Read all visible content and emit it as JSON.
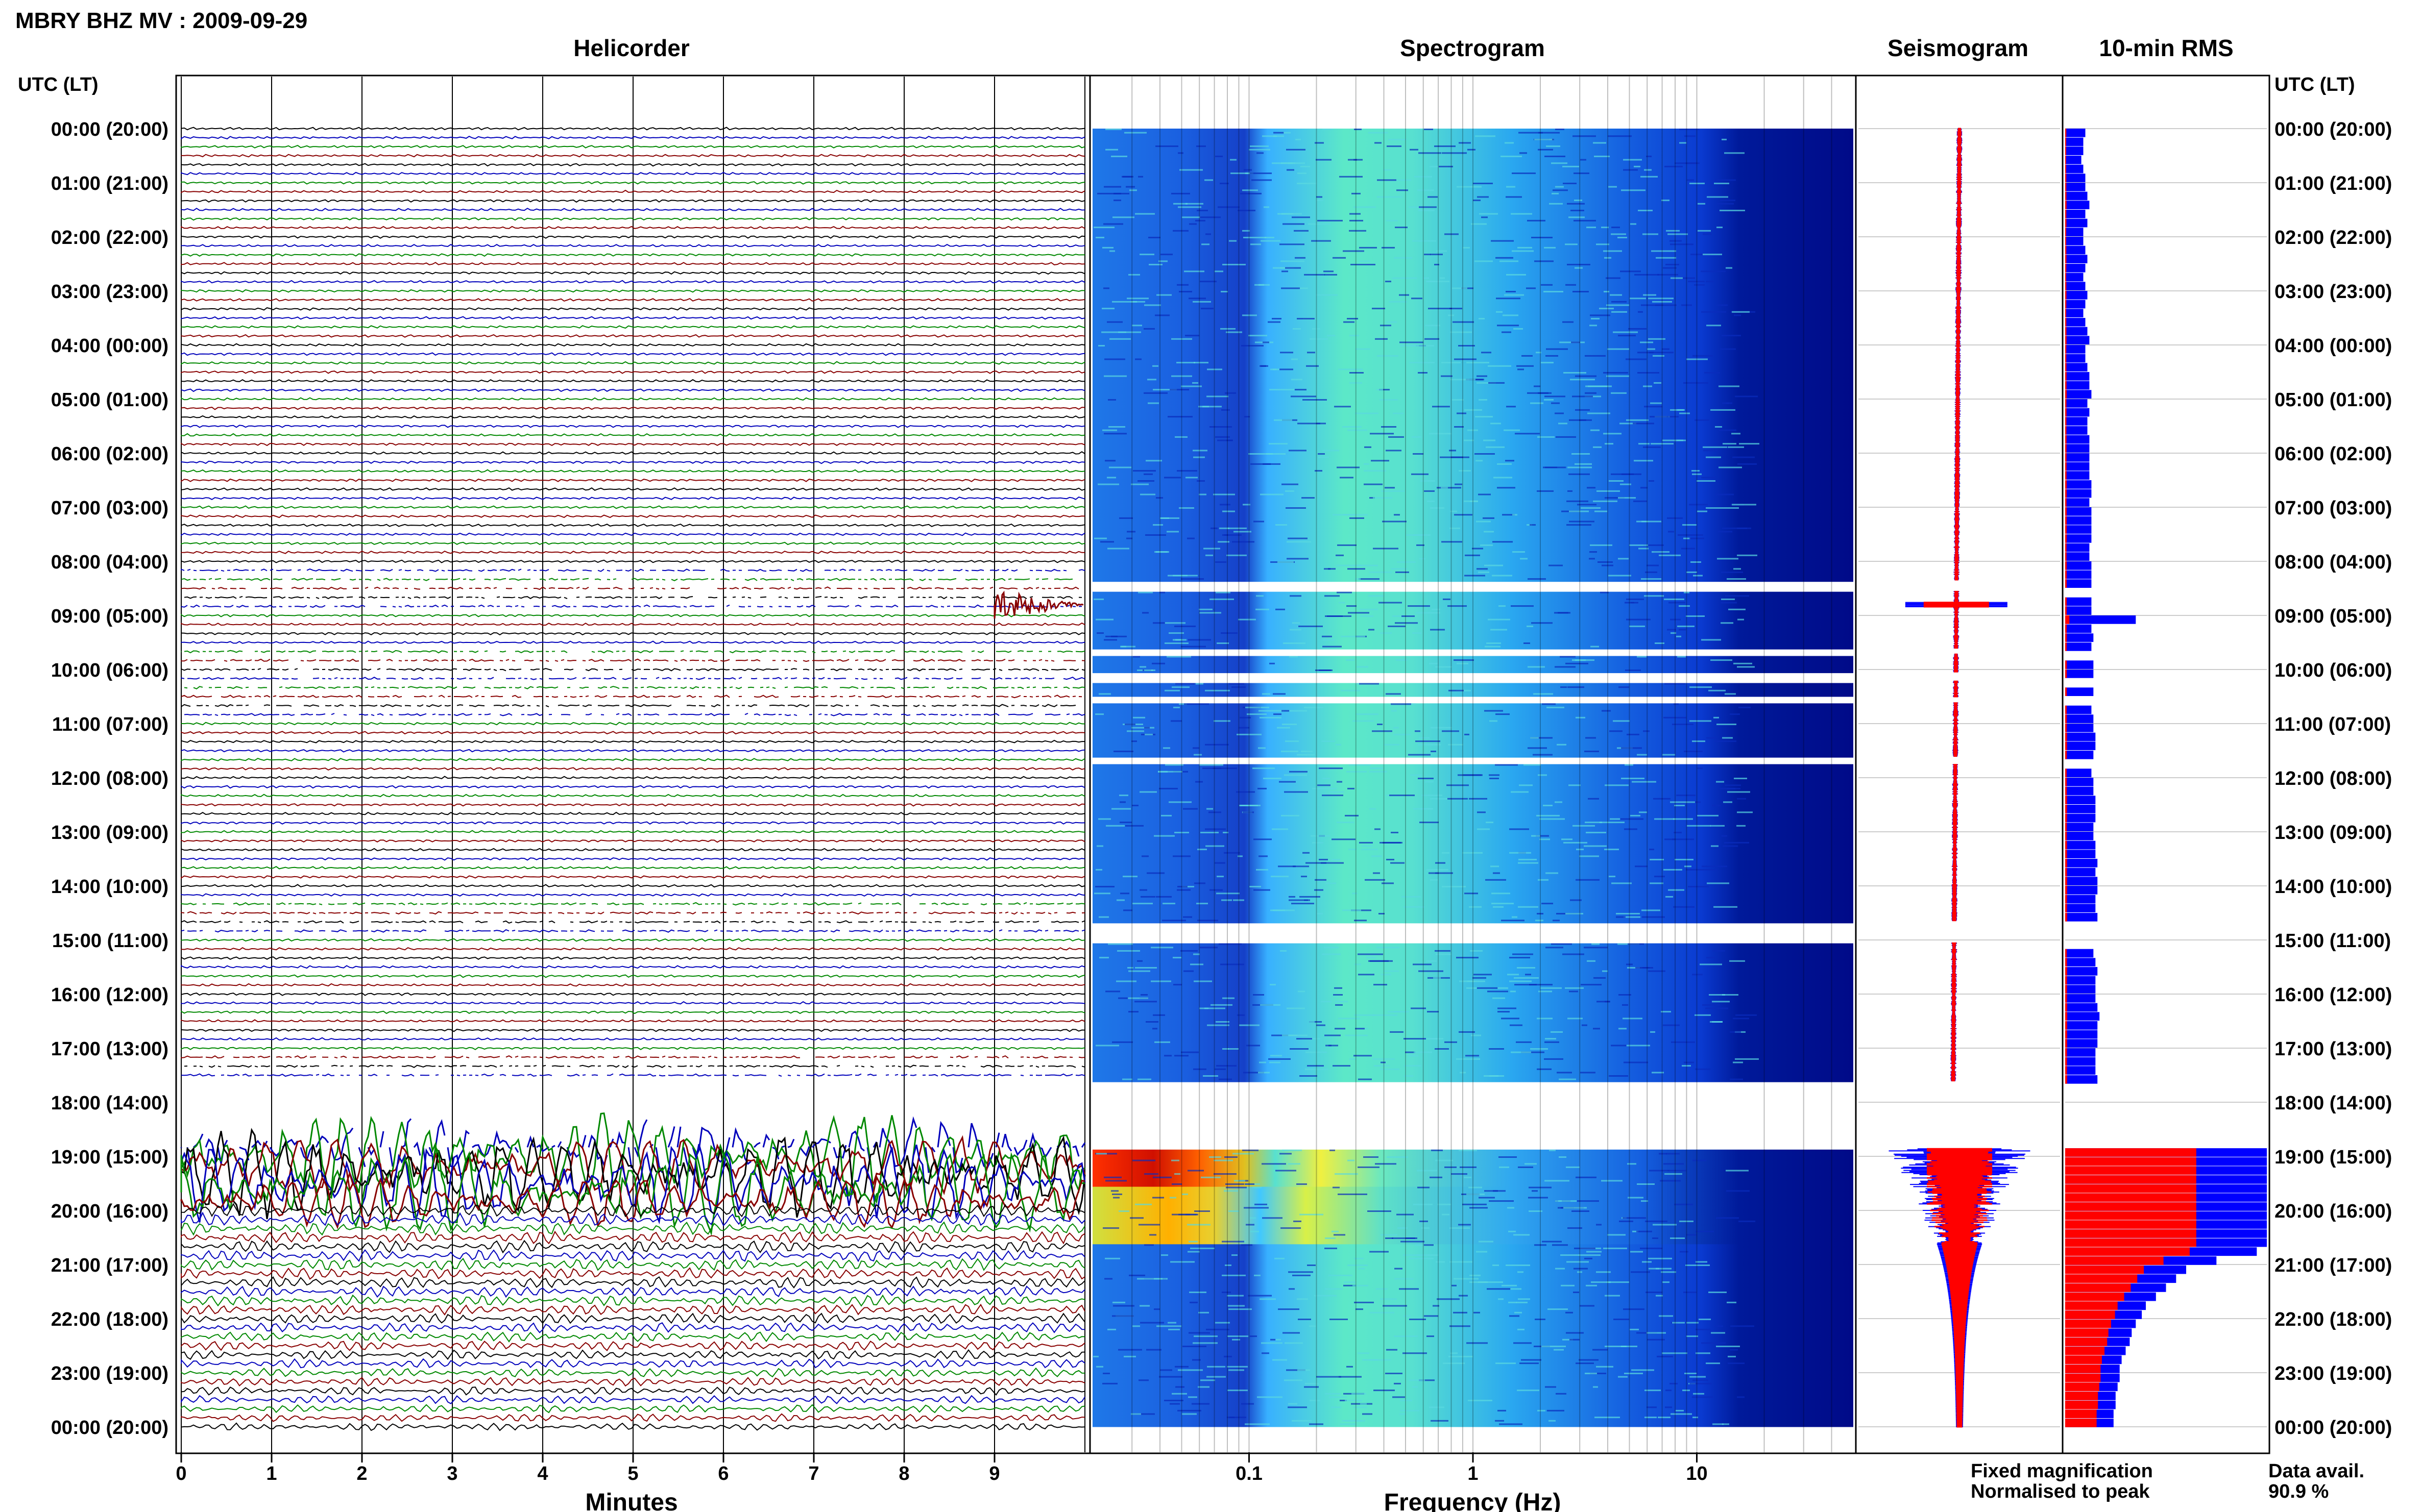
{
  "title": "MBRY BHZ MV : 2009-09-29",
  "panels": {
    "helicorder": "Helicorder",
    "spectrogram": "Spectrogram",
    "seismogram": "Seismogram",
    "rms": "10-min RMS"
  },
  "utc_header": "UTC (LT)",
  "time_labels": [
    "00:00 (20:00)",
    "01:00 (21:00)",
    "02:00 (22:00)",
    "03:00 (23:00)",
    "04:00 (00:00)",
    "05:00 (01:00)",
    "06:00 (02:00)",
    "07:00 (03:00)",
    "08:00 (04:00)",
    "09:00 (05:00)",
    "10:00 (06:00)",
    "11:00 (07:00)",
    "12:00 (08:00)",
    "13:00 (09:00)",
    "14:00 (10:00)",
    "15:00 (11:00)",
    "16:00 (12:00)",
    "17:00 (13:00)",
    "18:00 (14:00)",
    "19:00 (15:00)",
    "20:00 (16:00)",
    "21:00 (17:00)",
    "22:00 (18:00)",
    "23:00 (19:00)",
    "00:00 (20:00)"
  ],
  "legend": {
    "fixed": "Fixed magnification",
    "normalised": "Normalised to peak",
    "fixed_color": "#0000ff",
    "normalised_color": "#ff0000"
  },
  "data_avail": {
    "label": "Data avail.",
    "value": "90.9 %"
  },
  "chart_data": [
    {
      "type": "line",
      "title": "Helicorder",
      "xlabel": "Minutes",
      "x_ticks": [
        0,
        1,
        2,
        3,
        4,
        5,
        6,
        7,
        8,
        9
      ],
      "xlim": [
        0,
        10
      ],
      "rows_per_hour": 6,
      "trace_colors": [
        "#000000",
        "#0000bb",
        "#008800",
        "#880000"
      ],
      "gaps_hours": [
        8.5,
        10.0,
        10.5,
        14.6,
        17.5,
        18.5
      ],
      "event_hour": 8.8,
      "eruption_start_hour": 18.7
    },
    {
      "type": "heatmap",
      "title": "Spectrogram",
      "xlabel": "Frequency (Hz)",
      "x_scale": "log",
      "xlim": [
        0.02,
        50
      ],
      "x_tick_labels": [
        "0.1",
        "1",
        "10"
      ],
      "x_ticks": [
        0.1,
        1,
        10
      ],
      "no_data_hours": [
        [
          8.35,
          8.55
        ],
        [
          9.6,
          9.7
        ],
        [
          10.05,
          10.2
        ],
        [
          10.5,
          10.6
        ],
        [
          11.6,
          11.75
        ],
        [
          14.65,
          15.05
        ],
        [
          17.6,
          18.85
        ]
      ],
      "colormap": "jet",
      "high_energy_hours": [
        18.85,
        20.6
      ]
    },
    {
      "type": "line",
      "title": "Seismogram",
      "series": [
        {
          "name": "Fixed magnification",
          "color": "#0000ff"
        },
        {
          "name": "Normalised to peak",
          "color": "#ff0000"
        }
      ]
    },
    {
      "type": "bar",
      "title": "10-min RMS",
      "orientation": "horizontal",
      "series_colors": [
        "#0000ff",
        "#ff0000"
      ],
      "rms_fixed": [
        0.1,
        0.09,
        0.09,
        0.08,
        0.09,
        0.1,
        0.1,
        0.11,
        0.12,
        0.1,
        0.11,
        0.09,
        0.09,
        0.1,
        0.11,
        0.1,
        0.09,
        0.1,
        0.11,
        0.1,
        0.09,
        0.1,
        0.11,
        0.12,
        0.1,
        0.1,
        0.11,
        0.12,
        0.12,
        0.13,
        0.11,
        0.12,
        0.11,
        0.11,
        0.12,
        0.12,
        0.12,
        0.12,
        0.12,
        0.13,
        0.13,
        0.12,
        0.13,
        0.13,
        0.13,
        0.13,
        0.12,
        0.12,
        0.13,
        0.13,
        0.13,
        0.13,
        0.13,
        0.13,
        0.35,
        0.13,
        0.14,
        0.13,
        0.14,
        0.14,
        0.14,
        0.15,
        0.14,
        0.13,
        0.13,
        0.14,
        0.14,
        0.15,
        0.15,
        0.14,
        0.14,
        0.13,
        0.14,
        0.14,
        0.15,
        0.15,
        0.15,
        0.14,
        0.14,
        0.15,
        0.15,
        0.16,
        0.15,
        0.16,
        0.16,
        0.15,
        0.15,
        0.16,
        0.15,
        0.16,
        0.15,
        0.14,
        0.15,
        0.16,
        0.15,
        0.15,
        0.15,
        0.16,
        0.17,
        0.16,
        0.16,
        0.16,
        0.15,
        0.15,
        0.15,
        0.16,
        0.16,
        0.16,
        0.17,
        0.16,
        0.15,
        0.16,
        0.16,
        0.16,
        0.17,
        0.16,
        0.16,
        0.16,
        0.17,
        0.16,
        0.16,
        0.16,
        0.16,
        0.16,
        0.16,
        0.16,
        0.16,
        0.16,
        0.16,
        0.16,
        0.16,
        0.16,
        0.16,
        0.16,
        0.16,
        0.16,
        0.16,
        0.16,
        0.16,
        0.16,
        0.16,
        0.16,
        0.16,
        0.16,
        0.16,
        0.16,
        0.16,
        0.16,
        0.16,
        0.16,
        0.16,
        0.16
      ],
      "rms_eruption_fixed": [
        1.0,
        1.0,
        1.0,
        1.0,
        1.0,
        1.0,
        1.0,
        1.0,
        1.0,
        1.0,
        1.0,
        0.95,
        0.75,
        0.6,
        0.55,
        0.5,
        0.45,
        0.4,
        0.38,
        0.35,
        0.33,
        0.32,
        0.3,
        0.28,
        0.27,
        0.27,
        0.26,
        0.25,
        0.25,
        0.24,
        0.24,
        0.24,
        0.23,
        0.23
      ]
    }
  ]
}
